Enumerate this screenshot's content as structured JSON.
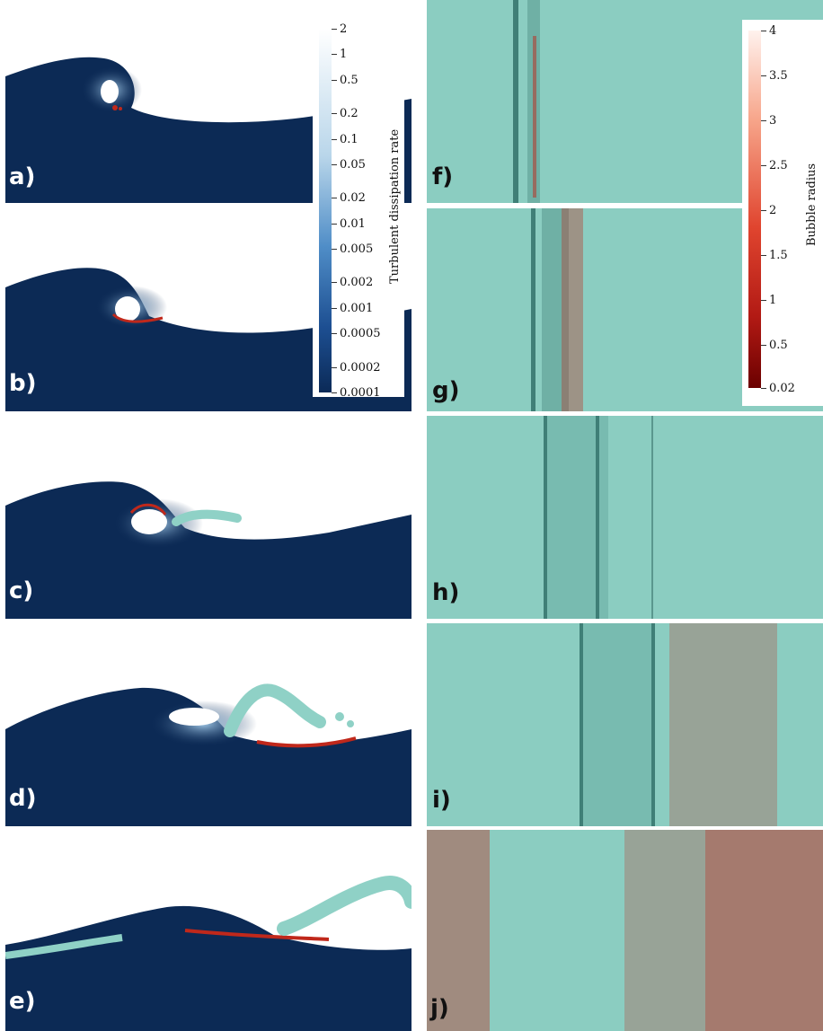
{
  "left_panels": [
    {
      "label": "a)"
    },
    {
      "label": "b)"
    },
    {
      "label": "c)"
    },
    {
      "label": "d)"
    },
    {
      "label": "e)"
    }
  ],
  "right_panels": [
    {
      "label": "f)"
    },
    {
      "label": "g)"
    },
    {
      "label": "h)"
    },
    {
      "label": "i)"
    },
    {
      "label": "j)"
    }
  ],
  "colorbar_dissipation": {
    "title": "Turbulent dissipation rate",
    "scale": "log",
    "ticks": [
      "2",
      "1",
      "0.5",
      "0.2",
      "0.1",
      "0.05",
      "0.02",
      "0.01",
      "0.005",
      "0.002",
      "0.001",
      "0.0005",
      "0.0002",
      "0.0001"
    ],
    "colors": [
      "#ffffff",
      "#b9d6ea",
      "#4f8dc7",
      "#1d4f92",
      "#0b2a57"
    ]
  },
  "colorbar_bubble": {
    "title": "Bubble radius",
    "ticks": [
      "4",
      "3.5",
      "3",
      "2.5",
      "2",
      "1.5",
      "1",
      "0.5",
      "0.02"
    ],
    "colors": [
      "#fff2ee",
      "#f7a58a",
      "#e0452f",
      "#b21a14",
      "#6b0000"
    ]
  },
  "colors": {
    "water": "#0c2a55",
    "foam": "#8fd1c6",
    "surface": "#89cbbf",
    "bubble": "#c0281b"
  }
}
